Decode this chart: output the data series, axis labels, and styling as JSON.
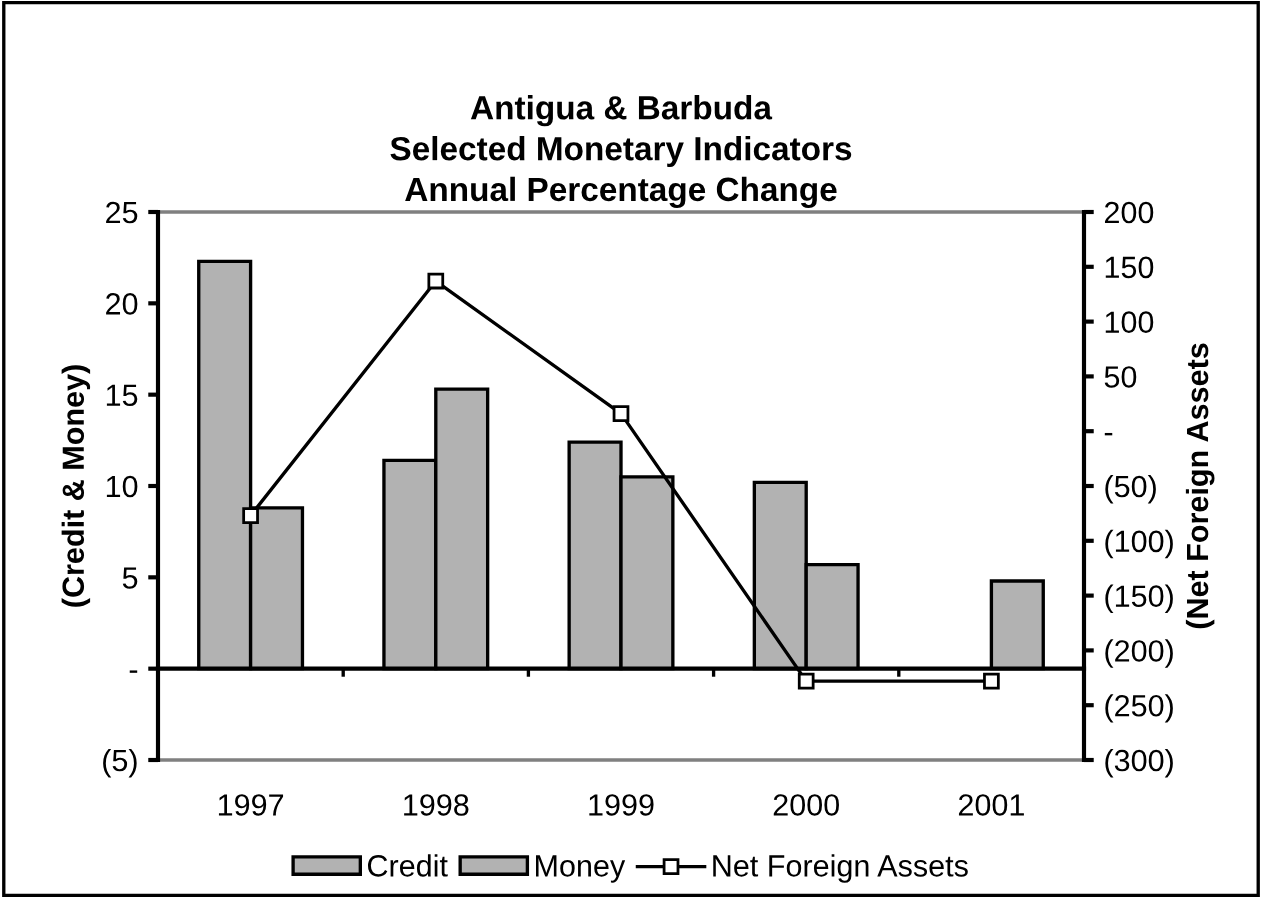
{
  "chart_data": {
    "type": "bar",
    "title": "Antigua & Barbuda\nSelected Monetary Indicators\nAnnual Percentage Change",
    "ylabel": "(Credit & Money)",
    "y2label": "(Net Foreign Assets",
    "categories": [
      "1997",
      "1998",
      "1999",
      "2000",
      "2001"
    ],
    "series": [
      {
        "name": "Credit",
        "color": "#b2b2b2",
        "values": [
          22.3,
          11.4,
          12.4,
          10.2,
          null
        ]
      },
      {
        "name": "Money",
        "color": "#b2b2b2",
        "values": [
          8.8,
          15.3,
          10.5,
          5.7,
          4.8
        ]
      },
      {
        "name": "Net Foreign Assets",
        "type": "line",
        "axis": "y2",
        "color": "#000000",
        "marker": "square",
        "values": [
          -77,
          137,
          16,
          -228,
          -228
        ]
      }
    ],
    "ylim": [
      -5,
      25
    ],
    "yticks": [
      {
        "value": -5,
        "label": "(5)"
      },
      {
        "value": 0,
        "label": "-"
      },
      5,
      10,
      15,
      20,
      25
    ],
    "y2lim": [
      -300,
      200
    ],
    "y2ticks": [
      {
        "value": -300,
        "label": "(300)"
      },
      {
        "value": -250,
        "label": "(250)"
      },
      {
        "value": -200,
        "label": "(200)"
      },
      {
        "value": -150,
        "label": "(150)"
      },
      {
        "value": -100,
        "label": "(100)"
      },
      {
        "value": -50,
        "label": "(50)"
      },
      {
        "value": 0,
        "label": "-"
      },
      50,
      100,
      150,
      200
    ],
    "legend": "bottom"
  }
}
